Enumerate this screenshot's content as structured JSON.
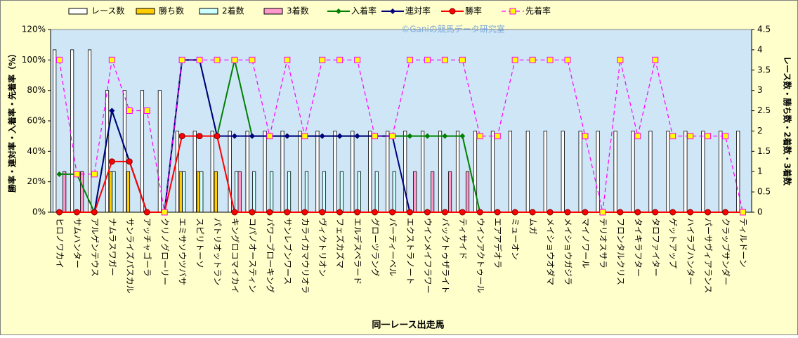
{
  "chart_data": {
    "type": "combo",
    "watermark": "©Ganiの競馬データ研究室",
    "x_label": "同一レース出走馬",
    "y_label": "勝率・連対率・入着率・先着率（%）",
    "y2_label": "レース数・勝ち数・2着数・3着数",
    "categories": [
      "ヒロノワカイ",
      "サムハンター",
      "アルゲンテウス",
      "ナムラスワガー",
      "サンライズパスカル",
      "アッチャゴーラ",
      "クリノグローリー",
      "エミサソウツバサ",
      "スピリトーソ",
      "パトリオットラン",
      "キングロコマイカイ",
      "コパノオースティン",
      "パワーブローキング",
      "サンレブンワース",
      "カライカマウリオラ",
      "ヴィクトリオン",
      "フェズカズマ",
      "エルデスペラード",
      "グローツラング",
      "パーティーベル",
      "エクストラノート",
      "ウインメイフラワー",
      "バックトゥザライト",
      "ティサイド",
      "ウインアクトゥール",
      "エアアデオラ",
      "ミューオン",
      "ムガ",
      "メイショウオダマ",
      "メイショウガジラ",
      "マイノワール",
      "テリオスサラ",
      "フロンタルクリス",
      "タイキラフター",
      "タロファイター",
      "ゲットアップ",
      "ハイラブハンター",
      "パーサヴィアランス",
      "クラップサンダー",
      "ティルドーン"
    ],
    "ylim": [
      0,
      120
    ],
    "yticks": [
      {
        "value": 0,
        "label": "0%"
      },
      {
        "value": 20,
        "label": "20%"
      },
      {
        "value": 40,
        "label": "40%"
      },
      {
        "value": 60,
        "label": "60%"
      },
      {
        "value": 80,
        "label": "80%"
      },
      {
        "value": 100,
        "label": "100%"
      },
      {
        "value": 120,
        "label": "120%"
      }
    ],
    "y2lim": [
      0,
      4.5
    ],
    "y2ticks": [
      0,
      0.5,
      1,
      1.5,
      2,
      2.5,
      3,
      3.5,
      4,
      4.5
    ],
    "grid": false,
    "legend": "top",
    "series": [
      {
        "name": "レース数",
        "type": "bar",
        "axis": "y2",
        "color": "#ffffff",
        "values": [
          4,
          4,
          4,
          3,
          3,
          3,
          3,
          2,
          2,
          2,
          2,
          2,
          2,
          2,
          2,
          2,
          2,
          2,
          2,
          2,
          2,
          2,
          2,
          2,
          2,
          2,
          2,
          2,
          2,
          2,
          2,
          2,
          2,
          2,
          2,
          2,
          2,
          2,
          2,
          2
        ]
      },
      {
        "name": "勝ち数",
        "type": "bar",
        "axis": "y2",
        "color": "#ffcc00",
        "values": [
          0,
          0,
          0,
          1,
          1,
          0,
          0,
          1,
          1,
          1,
          0,
          0,
          0,
          0,
          0,
          0,
          0,
          0,
          0,
          0,
          0,
          0,
          0,
          0,
          0,
          0,
          0,
          0,
          0,
          0,
          0,
          0,
          0,
          0,
          0,
          0,
          0,
          0,
          0,
          0
        ]
      },
      {
        "name": "2着数",
        "type": "bar",
        "axis": "y2",
        "color": "#ccffff",
        "values": [
          0,
          0,
          0,
          1,
          0,
          0,
          0,
          1,
          1,
          0,
          1,
          1,
          1,
          1,
          1,
          1,
          1,
          1,
          1,
          1,
          0,
          0,
          0,
          0,
          0,
          0,
          0,
          0,
          0,
          0,
          0,
          0,
          0,
          0,
          0,
          0,
          0,
          0,
          0,
          0
        ]
      },
      {
        "name": "3着数",
        "type": "bar",
        "axis": "y2",
        "color": "#ff99cc",
        "values": [
          1,
          1,
          0,
          0,
          0,
          0,
          0,
          0,
          0,
          0,
          1,
          0,
          0,
          0,
          0,
          0,
          0,
          0,
          0,
          0,
          1,
          1,
          1,
          1,
          0,
          0,
          0,
          0,
          0,
          0,
          0,
          0,
          0,
          0,
          0,
          0,
          0,
          0,
          0,
          0
        ]
      },
      {
        "name": "入着率",
        "type": "line",
        "marker": "diamond",
        "color": "#008000",
        "values": [
          25,
          25,
          0,
          66.7,
          33.3,
          0,
          0,
          100,
          100,
          50,
          100,
          50,
          50,
          50,
          50,
          50,
          50,
          50,
          50,
          50,
          50,
          50,
          50,
          50,
          0,
          0,
          0,
          0,
          0,
          0,
          0,
          0,
          0,
          0,
          0,
          0,
          0,
          0,
          0,
          0
        ]
      },
      {
        "name": "連対率",
        "type": "line",
        "marker": "diamond",
        "color": "#000080",
        "values": [
          0,
          0,
          0,
          66.7,
          33.3,
          0,
          0,
          100,
          100,
          50,
          50,
          50,
          50,
          50,
          50,
          50,
          50,
          50,
          50,
          50,
          0,
          0,
          0,
          0,
          0,
          0,
          0,
          0,
          0,
          0,
          0,
          0,
          0,
          0,
          0,
          0,
          0,
          0,
          0,
          0
        ]
      },
      {
        "name": "勝率",
        "type": "line",
        "marker": "circle",
        "color": "#ff0000",
        "values": [
          0,
          0,
          0,
          33.3,
          33.3,
          0,
          0,
          50,
          50,
          50,
          0,
          0,
          0,
          0,
          0,
          0,
          0,
          0,
          0,
          0,
          0,
          0,
          0,
          0,
          0,
          0,
          0,
          0,
          0,
          0,
          0,
          0,
          0,
          0,
          0,
          0,
          0,
          0,
          0,
          0
        ]
      },
      {
        "name": "先着率",
        "type": "line",
        "marker": "square",
        "dashed": true,
        "color": "#ff00ff",
        "values": [
          100,
          25,
          25,
          100,
          66.7,
          66.7,
          0,
          100,
          100,
          100,
          100,
          100,
          50,
          100,
          50,
          100,
          100,
          100,
          50,
          50,
          100,
          100,
          100,
          100,
          50,
          50,
          100,
          100,
          100,
          100,
          50,
          0,
          100,
          50,
          100,
          50,
          50,
          50,
          50,
          0
        ]
      }
    ]
  }
}
